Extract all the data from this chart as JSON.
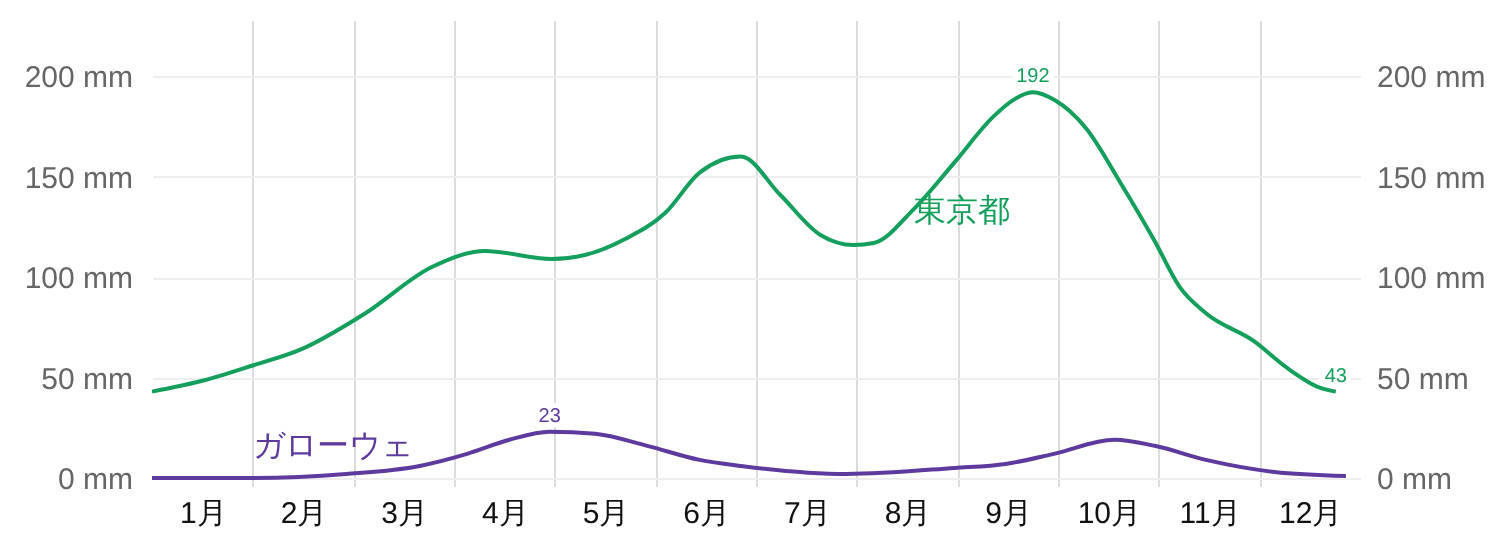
{
  "chart_data": {
    "type": "line",
    "xlim": [
      0,
      12
    ],
    "xticks": [
      {
        "value": 0.5,
        "label": "1月"
      },
      {
        "value": 1,
        "label": null
      },
      {
        "value": 1.5,
        "label": "2月"
      },
      {
        "value": 2,
        "label": null
      },
      {
        "value": 2.5,
        "label": "3月"
      },
      {
        "value": 3,
        "label": null
      },
      {
        "value": 3.5,
        "label": "4月"
      },
      {
        "value": 4,
        "label": null
      },
      {
        "value": 4.5,
        "label": "5月"
      },
      {
        "value": 5,
        "label": null
      },
      {
        "value": 5.5,
        "label": "6月"
      },
      {
        "value": 6,
        "label": null
      },
      {
        "value": 6.5,
        "label": "7月"
      },
      {
        "value": 7,
        "label": null
      },
      {
        "value": 7.5,
        "label": "8月"
      },
      {
        "value": 8,
        "label": null
      },
      {
        "value": 8.5,
        "label": "9月"
      },
      {
        "value": 9,
        "label": null
      },
      {
        "value": 9.5,
        "label": "10月"
      },
      {
        "value": 10,
        "label": null
      },
      {
        "value": 10.5,
        "label": "11月"
      },
      {
        "value": 11,
        "label": null
      },
      {
        "value": 11.5,
        "label": "12月"
      }
    ],
    "ylim": [
      -4,
      228
    ],
    "yticks": [
      {
        "value": 0,
        "label": "0 mm"
      },
      {
        "value": 50,
        "label": "50 mm"
      },
      {
        "value": 100,
        "label": "100 mm"
      },
      {
        "value": 150,
        "label": "150 mm"
      },
      {
        "value": 200,
        "label": "200 mm"
      }
    ],
    "y2lim": [
      -4,
      228
    ],
    "y2ticks": [
      {
        "value": 0,
        "label": "0 mm"
      },
      {
        "value": 50,
        "label": "50 mm"
      },
      {
        "value": 100,
        "label": "100 mm"
      },
      {
        "value": 150,
        "label": "150 mm"
      },
      {
        "value": 200,
        "label": "200 mm"
      }
    ],
    "grid": true,
    "legend": false,
    "marker": "none",
    "line_style": "solid",
    "series": [
      {
        "name": "東京都",
        "color": "#14a05c",
        "x": [
          0,
          0.47,
          1.0,
          1.48,
          2.12,
          2.78,
          3.31,
          3.97,
          4.3,
          4.7,
          5.1,
          5.44,
          5.85,
          6.24,
          6.64,
          6.97,
          7.17,
          7.57,
          7.97,
          8.36,
          8.55,
          8.75,
          8.97,
          9.28,
          9.62,
          9.96,
          10.21,
          10.47,
          10.95,
          11.27,
          11.6,
          11.76
        ],
        "values": [
          43,
          48,
          56,
          64,
          82,
          105,
          113,
          109,
          111,
          119,
          132,
          152,
          160,
          141,
          121,
          116,
          117,
          134,
          157,
          180,
          188,
          192,
          188,
          174,
          147,
          118,
          95,
          82,
          68,
          55,
          45,
          43
        ],
        "value_labels": [
          null,
          null,
          null,
          null,
          null,
          null,
          null,
          null,
          null,
          null,
          null,
          null,
          null,
          null,
          null,
          null,
          null,
          null,
          null,
          null,
          null,
          "192",
          null,
          null,
          null,
          null,
          null,
          null,
          null,
          null,
          null,
          "43"
        ]
      },
      {
        "name": "ガローウェ",
        "color": "#5e3a9e",
        "x": [
          0,
          1.0,
          1.93,
          2.66,
          3.13,
          3.55,
          3.95,
          4.4,
          4.92,
          5.44,
          5.85,
          6.9,
          7.97,
          8.48,
          8.96,
          9.56,
          9.96,
          10.47,
          11.15,
          11.86
        ],
        "values": [
          0,
          0,
          2,
          6,
          12,
          19,
          23,
          22,
          16,
          9,
          6,
          2,
          5,
          7,
          12,
          19,
          16,
          9,
          3,
          1
        ],
        "value_labels": [
          null,
          null,
          null,
          null,
          null,
          null,
          "23",
          null,
          null,
          null,
          null,
          null,
          null,
          null,
          null,
          null,
          null,
          null,
          null,
          null
        ]
      }
    ]
  }
}
